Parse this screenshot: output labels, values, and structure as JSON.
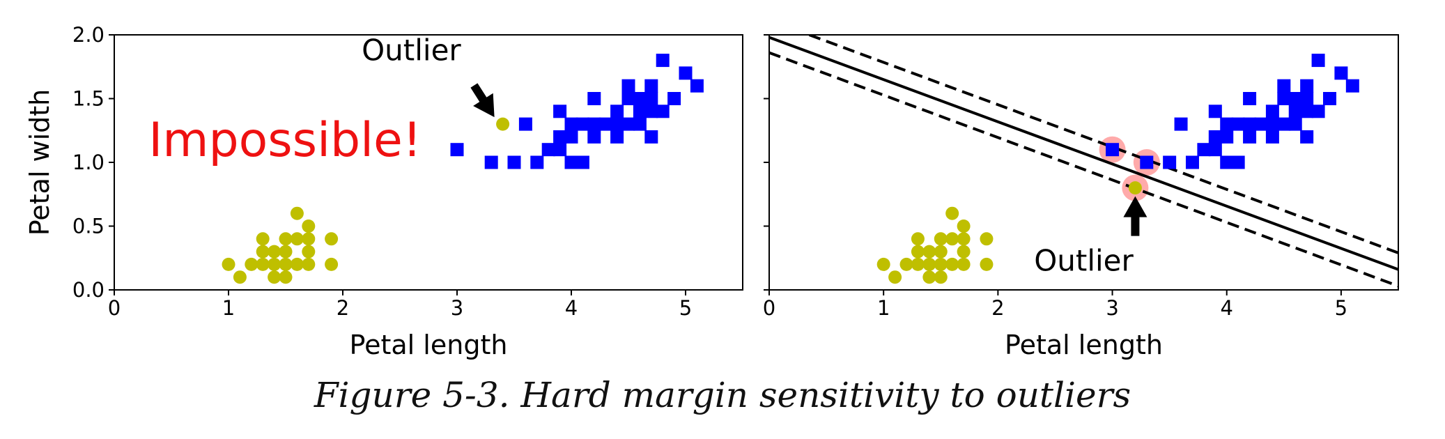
{
  "caption": "Figure 5-3. Hard margin sensitivity to outliers",
  "colors": {
    "class0": "#bfbf00",
    "class1": "#0000ff",
    "support_vector": "#ffaaaa",
    "impossible": "#ee1111"
  },
  "chart_data": [
    {
      "type": "scatter",
      "title": "",
      "xlabel": "Petal length",
      "ylabel": "Petal width",
      "xlim": [
        0,
        5.5
      ],
      "ylim": [
        0,
        2
      ],
      "xticks": [
        "0",
        "1",
        "2",
        "3",
        "4",
        "5"
      ],
      "yticks": [
        "0.0",
        "0.5",
        "1.0",
        "1.5",
        "2.0"
      ],
      "series": [
        {
          "marker": "circle",
          "color": "#bfbf00",
          "points": [
            [
              1.0,
              0.2
            ],
            [
              1.1,
              0.1
            ],
            [
              1.2,
              0.2
            ],
            [
              1.3,
              0.2
            ],
            [
              1.3,
              0.3
            ],
            [
              1.3,
              0.4
            ],
            [
              1.4,
              0.1
            ],
            [
              1.4,
              0.2
            ],
            [
              1.4,
              0.3
            ],
            [
              1.5,
              0.1
            ],
            [
              1.5,
              0.2
            ],
            [
              1.5,
              0.3
            ],
            [
              1.5,
              0.4
            ],
            [
              1.6,
              0.2
            ],
            [
              1.6,
              0.4
            ],
            [
              1.6,
              0.6
            ],
            [
              1.7,
              0.2
            ],
            [
              1.7,
              0.3
            ],
            [
              1.7,
              0.4
            ],
            [
              1.7,
              0.5
            ],
            [
              1.9,
              0.2
            ],
            [
              1.9,
              0.4
            ]
          ]
        },
        {
          "marker": "square",
          "color": "#0000ff",
          "points": [
            [
              3.0,
              1.1
            ],
            [
              3.3,
              1.0
            ],
            [
              3.5,
              1.0
            ],
            [
              3.6,
              1.3
            ],
            [
              3.7,
              1.0
            ],
            [
              3.8,
              1.1
            ],
            [
              3.9,
              1.1
            ],
            [
              3.9,
              1.2
            ],
            [
              3.9,
              1.4
            ],
            [
              4.0,
              1.0
            ],
            [
              4.0,
              1.2
            ],
            [
              4.0,
              1.3
            ],
            [
              4.1,
              1.0
            ],
            [
              4.1,
              1.3
            ],
            [
              4.2,
              1.2
            ],
            [
              4.2,
              1.3
            ],
            [
              4.2,
              1.5
            ],
            [
              4.3,
              1.3
            ],
            [
              4.4,
              1.2
            ],
            [
              4.4,
              1.3
            ],
            [
              4.4,
              1.4
            ],
            [
              4.5,
              1.3
            ],
            [
              4.5,
              1.5
            ],
            [
              4.5,
              1.6
            ],
            [
              4.6,
              1.3
            ],
            [
              4.6,
              1.4
            ],
            [
              4.6,
              1.5
            ],
            [
              4.7,
              1.2
            ],
            [
              4.7,
              1.4
            ],
            [
              4.7,
              1.5
            ],
            [
              4.7,
              1.6
            ],
            [
              4.8,
              1.4
            ],
            [
              4.8,
              1.8
            ],
            [
              4.9,
              1.5
            ],
            [
              5.0,
              1.7
            ],
            [
              5.1,
              1.6
            ]
          ]
        }
      ],
      "outlier": {
        "x": 3.4,
        "y": 1.3,
        "label": "Outlier",
        "label_x": 2.6,
        "label_y": 1.8
      },
      "annotation_text": {
        "text": "Impossible!",
        "x": 0.3,
        "y": 1.05
      }
    },
    {
      "type": "scatter",
      "title": "",
      "xlabel": "Petal length",
      "ylabel": "",
      "xlim": [
        0,
        5.5
      ],
      "ylim": [
        0,
        2
      ],
      "xticks": [
        "0",
        "1",
        "2",
        "3",
        "4",
        "5"
      ],
      "series": [
        {
          "marker": "circle",
          "color": "#bfbf00",
          "points": [
            [
              1.0,
              0.2
            ],
            [
              1.1,
              0.1
            ],
            [
              1.2,
              0.2
            ],
            [
              1.3,
              0.2
            ],
            [
              1.3,
              0.3
            ],
            [
              1.3,
              0.4
            ],
            [
              1.4,
              0.1
            ],
            [
              1.4,
              0.2
            ],
            [
              1.4,
              0.3
            ],
            [
              1.5,
              0.1
            ],
            [
              1.5,
              0.2
            ],
            [
              1.5,
              0.3
            ],
            [
              1.5,
              0.4
            ],
            [
              1.6,
              0.2
            ],
            [
              1.6,
              0.4
            ],
            [
              1.6,
              0.6
            ],
            [
              1.7,
              0.2
            ],
            [
              1.7,
              0.3
            ],
            [
              1.7,
              0.4
            ],
            [
              1.7,
              0.5
            ],
            [
              1.9,
              0.2
            ],
            [
              1.9,
              0.4
            ]
          ]
        },
        {
          "marker": "square",
          "color": "#0000ff",
          "points": [
            [
              3.0,
              1.1
            ],
            [
              3.3,
              1.0
            ],
            [
              3.5,
              1.0
            ],
            [
              3.6,
              1.3
            ],
            [
              3.7,
              1.0
            ],
            [
              3.8,
              1.1
            ],
            [
              3.9,
              1.1
            ],
            [
              3.9,
              1.2
            ],
            [
              3.9,
              1.4
            ],
            [
              4.0,
              1.0
            ],
            [
              4.0,
              1.2
            ],
            [
              4.0,
              1.3
            ],
            [
              4.1,
              1.0
            ],
            [
              4.1,
              1.3
            ],
            [
              4.2,
              1.2
            ],
            [
              4.2,
              1.3
            ],
            [
              4.2,
              1.5
            ],
            [
              4.3,
              1.3
            ],
            [
              4.4,
              1.2
            ],
            [
              4.4,
              1.3
            ],
            [
              4.4,
              1.4
            ],
            [
              4.5,
              1.3
            ],
            [
              4.5,
              1.5
            ],
            [
              4.5,
              1.6
            ],
            [
              4.6,
              1.3
            ],
            [
              4.6,
              1.4
            ],
            [
              4.6,
              1.5
            ],
            [
              4.7,
              1.2
            ],
            [
              4.7,
              1.4
            ],
            [
              4.7,
              1.5
            ],
            [
              4.7,
              1.6
            ],
            [
              4.8,
              1.4
            ],
            [
              4.8,
              1.8
            ],
            [
              4.9,
              1.5
            ],
            [
              5.0,
              1.7
            ],
            [
              5.1,
              1.6
            ]
          ]
        }
      ],
      "outlier": {
        "x": 3.2,
        "y": 0.8,
        "label": "Outlier",
        "label_x": 2.75,
        "label_y": 0.15
      },
      "support_vectors": [
        [
          3.0,
          1.1
        ],
        [
          3.3,
          1.0
        ],
        [
          3.2,
          0.8
        ]
      ],
      "decision_boundary": {
        "x": [
          0,
          5.5
        ],
        "y": [
          1.98,
          0.16
        ]
      },
      "margins": [
        {
          "x": [
            0.35,
            5.5
          ],
          "y": [
            2.0,
            0.29
          ]
        },
        {
          "x": [
            0,
            5.5
          ],
          "y": [
            1.86,
            0.03
          ]
        }
      ]
    }
  ]
}
